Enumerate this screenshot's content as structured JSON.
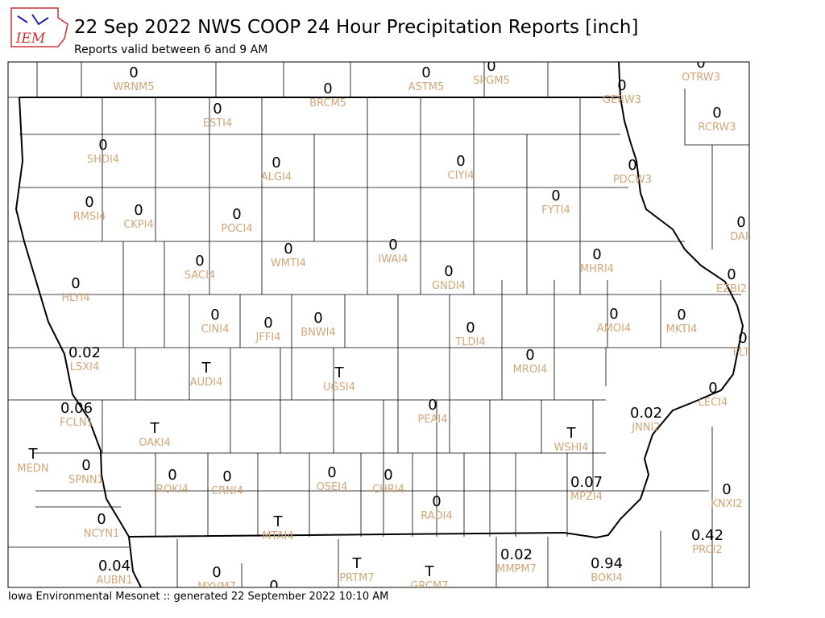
{
  "header": {
    "title": "22 Sep 2022 NWS COOP 24 Hour Precipitation Reports [inch]",
    "subtitle": "Reports valid between 6 and 9 AM"
  },
  "logo": "IEM",
  "stations": [
    {
      "value": "0",
      "id": "WRNM5"
    },
    {
      "value": "0",
      "id": "BRCM5"
    },
    {
      "value": "0",
      "id": "ASTM5"
    },
    {
      "value": "0",
      "id": "SPGM5"
    },
    {
      "value": "0",
      "id": "GERW3"
    },
    {
      "value": "0",
      "id": "OTRW3"
    },
    {
      "value": "0",
      "id": "RCRW3"
    },
    {
      "value": "0",
      "id": "ESTI4"
    },
    {
      "value": "0",
      "id": "SHDI4"
    },
    {
      "value": "0",
      "id": "ALGI4"
    },
    {
      "value": "0",
      "id": "CIYI4"
    },
    {
      "value": "0",
      "id": "PDCW3"
    },
    {
      "value": "0",
      "id": "FYTI4"
    },
    {
      "value": "0",
      "id": "RMSI4"
    },
    {
      "value": "0",
      "id": "CKPI4"
    },
    {
      "value": "0",
      "id": "POCI4"
    },
    {
      "value": "0",
      "id": "DAR"
    },
    {
      "value": "0",
      "id": "WMTI4"
    },
    {
      "value": "0",
      "id": "IWAI4"
    },
    {
      "value": "0",
      "id": "SACI4"
    },
    {
      "value": "0",
      "id": "GNDI4"
    },
    {
      "value": "0",
      "id": "MHRI4"
    },
    {
      "value": "0",
      "id": "EZBI2"
    },
    {
      "value": "0",
      "id": "HLYI4"
    },
    {
      "value": "0",
      "id": "CINI4"
    },
    {
      "value": "0",
      "id": "JFFI4"
    },
    {
      "value": "0",
      "id": "BNWI4"
    },
    {
      "value": "0",
      "id": "TLDI4"
    },
    {
      "value": "0",
      "id": "AMOI4"
    },
    {
      "value": "0",
      "id": "MKTI4"
    },
    {
      "value": "0",
      "id": "FLTI"
    },
    {
      "value": "0.02",
      "id": "LSXI4"
    },
    {
      "value": "T",
      "id": "AUDI4"
    },
    {
      "value": "T",
      "id": "UGSI4"
    },
    {
      "value": "0",
      "id": "MROI4"
    },
    {
      "value": "0",
      "id": "LECI4"
    },
    {
      "value": "0.06",
      "id": "FCLN1"
    },
    {
      "value": "0",
      "id": "PEAI4"
    },
    {
      "value": "0.02",
      "id": "JNNI2"
    },
    {
      "value": "T",
      "id": "OAKI4"
    },
    {
      "value": "T",
      "id": "WSHI4"
    },
    {
      "value": "T",
      "id": "MEDN"
    },
    {
      "value": "0",
      "id": "SPNN1"
    },
    {
      "value": "0",
      "id": "ROKI4"
    },
    {
      "value": "0",
      "id": "CRNI4"
    },
    {
      "value": "0",
      "id": "OSEI4"
    },
    {
      "value": "0",
      "id": "CHRI4"
    },
    {
      "value": "0.07",
      "id": "MPZI4"
    },
    {
      "value": "0",
      "id": "KNXI2"
    },
    {
      "value": "0",
      "id": "RADI4"
    },
    {
      "value": "T",
      "id": "MTAI4"
    },
    {
      "value": "0",
      "id": "NCYN1"
    },
    {
      "value": "0.42",
      "id": "PRCI2"
    },
    {
      "value": "0.02",
      "id": "MMPM7"
    },
    {
      "value": "T",
      "id": "PRTM7"
    },
    {
      "value": "T",
      "id": "GRCM7"
    },
    {
      "value": "0.94",
      "id": "BOKI4"
    },
    {
      "value": "0.04",
      "id": "AUBN1"
    },
    {
      "value": "0",
      "id": "MYVM7"
    },
    {
      "value": "0"
    }
  ],
  "footer": "Iowa Environmental Mesonet :: generated 22 September 2022 10:10 AM"
}
